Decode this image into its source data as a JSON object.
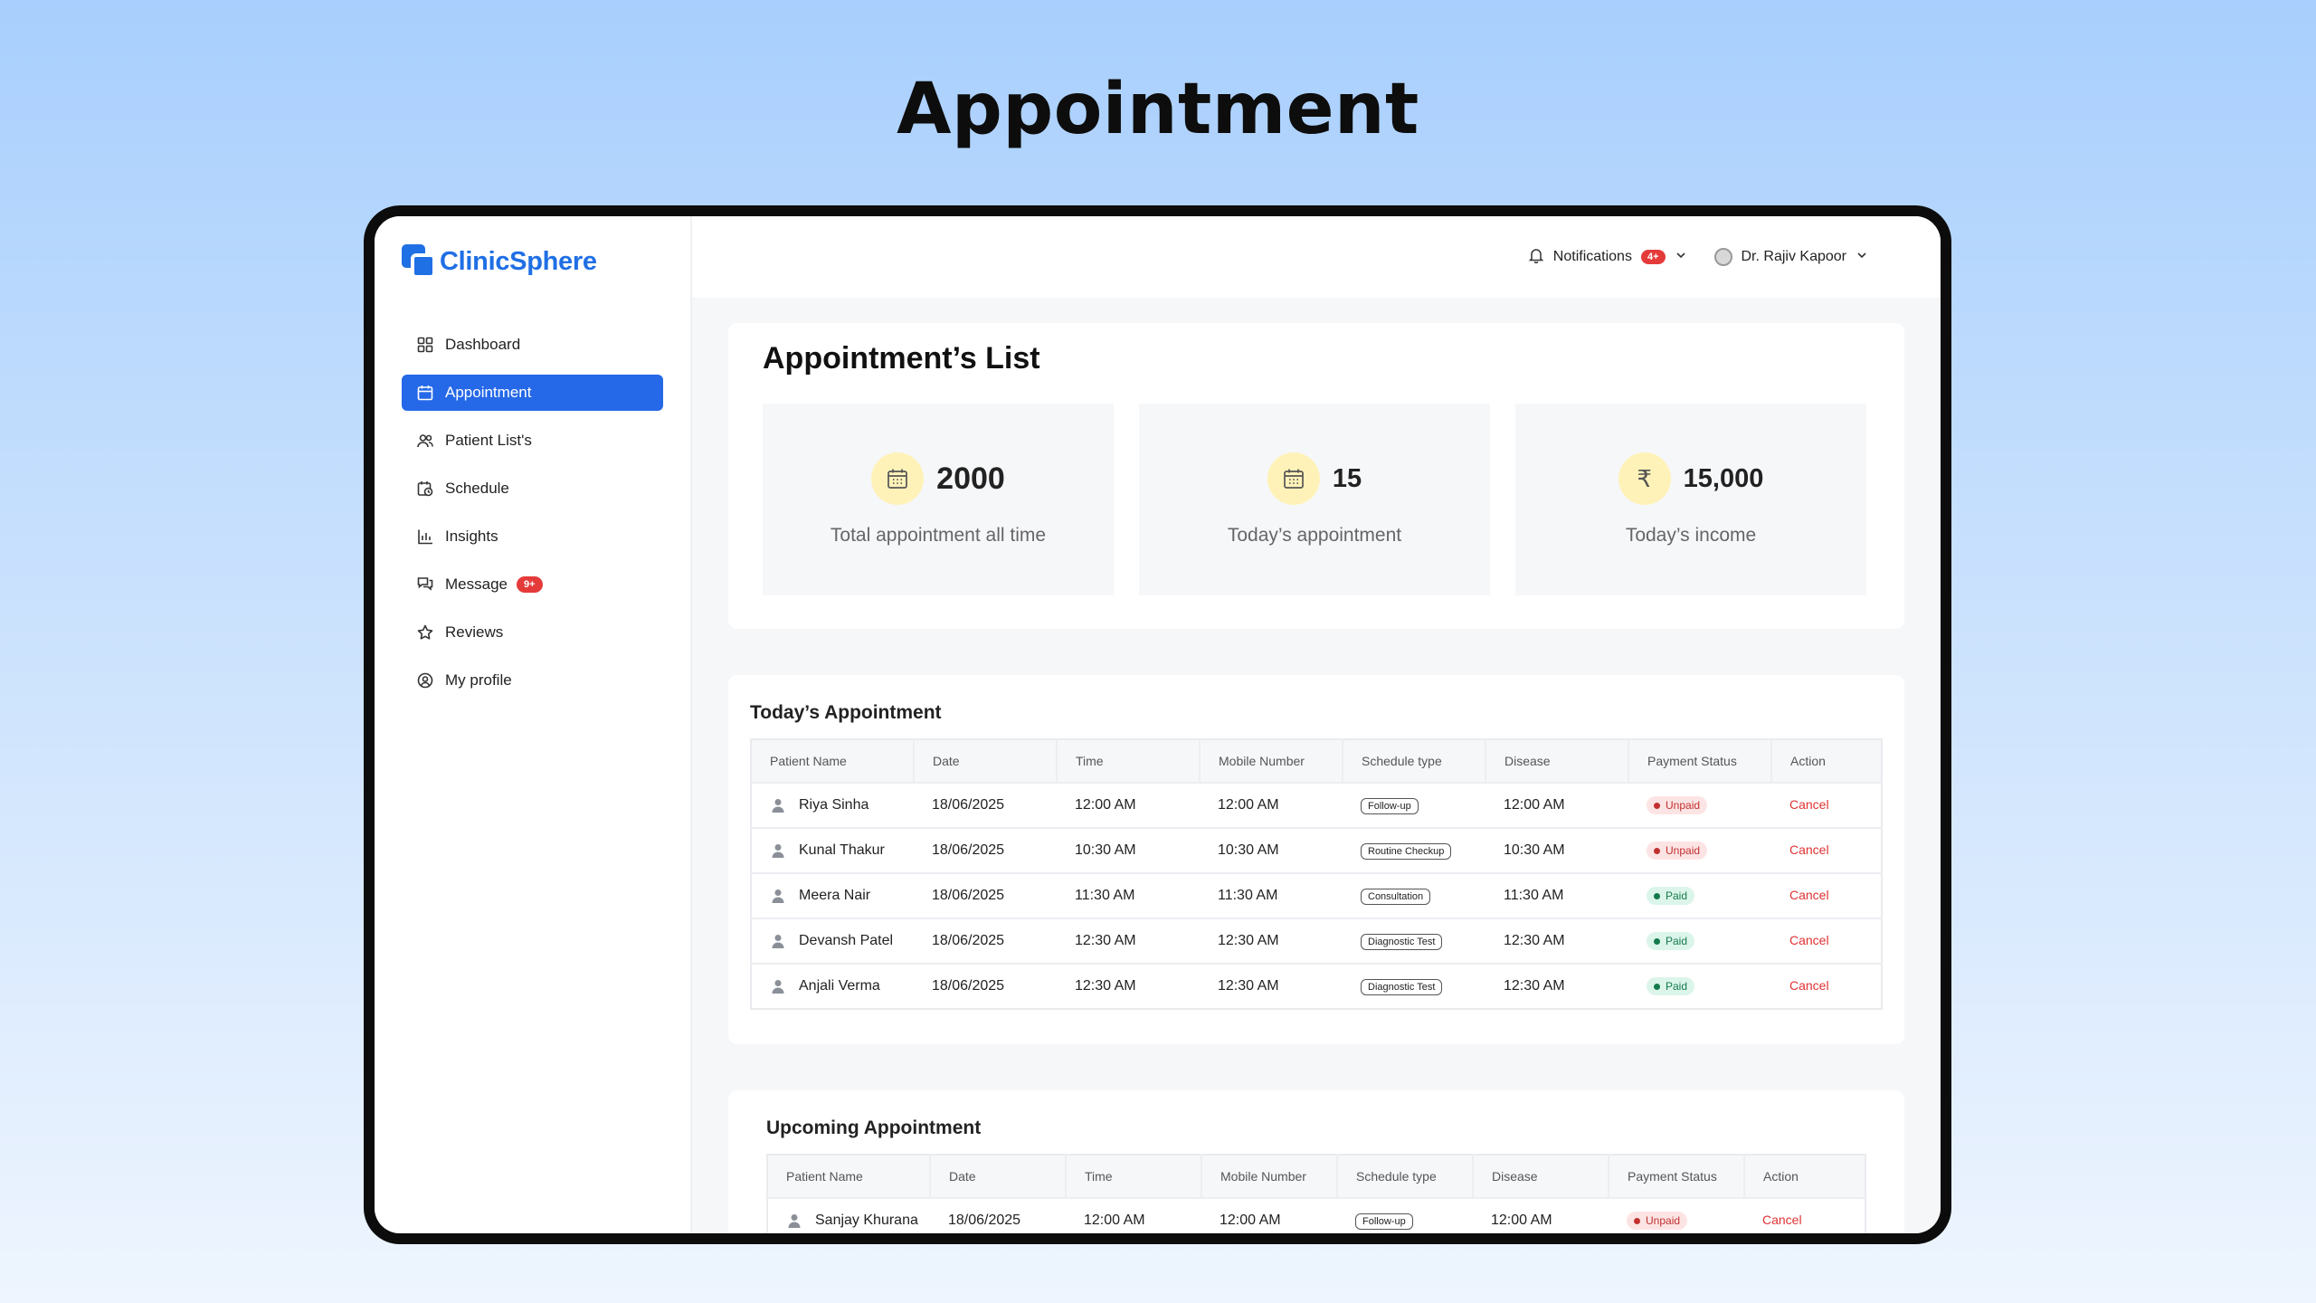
{
  "hero_title": "Appointment",
  "brand": {
    "name": "ClinicSphere",
    "color": "#1f6fe5"
  },
  "sidebar": {
    "items": [
      {
        "label": "Dashboard",
        "icon": "grid-icon",
        "active": false
      },
      {
        "label": "Appointment",
        "icon": "calendar-icon",
        "active": true
      },
      {
        "label": "Patient List's",
        "icon": "users-icon",
        "active": false
      },
      {
        "label": "Schedule",
        "icon": "calendar-clock-icon",
        "active": false
      },
      {
        "label": "Insights",
        "icon": "bar-chart-icon",
        "active": false
      },
      {
        "label": "Message",
        "icon": "chat-icon",
        "active": false,
        "badge": "9+"
      },
      {
        "label": "Reviews",
        "icon": "star-icon",
        "active": false
      },
      {
        "label": "My profile",
        "icon": "user-circle-icon",
        "active": false
      }
    ]
  },
  "topbar": {
    "notifications_label": "Notifications",
    "notifications_badge": "4+",
    "user_name": "Dr. Rajiv Kapoor"
  },
  "list_title": "Appointment’s List",
  "stats": [
    {
      "value": "2000",
      "label": "Total appointment all time",
      "icon": "calendar-icon"
    },
    {
      "value": "15",
      "label": "Today’s appointment",
      "icon": "calendar-icon"
    },
    {
      "value": "15,000",
      "label": "Today’s income",
      "icon": "rupee-icon"
    }
  ],
  "today": {
    "title": "Today’s Appointment",
    "columns": [
      "Patient Name",
      "Date",
      "Time",
      "Mobile Number",
      "Schedule type",
      "Disease",
      "Payment Status",
      "Action"
    ],
    "rows": [
      {
        "name": "Riya Sinha",
        "date": "18/06/2025",
        "time": "12:00 AM",
        "mobile": "12:00 AM",
        "type": "Follow-up",
        "disease": "12:00 AM",
        "payment": "Unpaid",
        "action": "Cancel"
      },
      {
        "name": "Kunal Thakur",
        "date": "18/06/2025",
        "time": "10:30 AM",
        "mobile": "10:30 AM",
        "type": "Routine Checkup",
        "disease": "10:30 AM",
        "payment": "Unpaid",
        "action": "Cancel"
      },
      {
        "name": "Meera Nair",
        "date": "18/06/2025",
        "time": "11:30 AM",
        "mobile": "11:30 AM",
        "type": "Consultation",
        "disease": "11:30 AM",
        "payment": "Paid",
        "action": "Cancel"
      },
      {
        "name": "Devansh Patel",
        "date": "18/06/2025",
        "time": "12:30 AM",
        "mobile": "12:30 AM",
        "type": "Diagnostic Test",
        "disease": "12:30 AM",
        "payment": "Paid",
        "action": "Cancel"
      },
      {
        "name": "Anjali Verma",
        "date": "18/06/2025",
        "time": "12:30 AM",
        "mobile": "12:30 AM",
        "type": "Diagnostic Test",
        "disease": "12:30 AM",
        "payment": "Paid",
        "action": "Cancel"
      }
    ]
  },
  "upcoming": {
    "title": "Upcoming Appointment",
    "columns": [
      "Patient Name",
      "Date",
      "Time",
      "Mobile Number",
      "Schedule type",
      "Disease",
      "Payment Status",
      "Action"
    ],
    "rows": [
      {
        "name": "Sanjay Khurana",
        "date": "18/06/2025",
        "time": "12:00 AM",
        "mobile": "12:00 AM",
        "type": "Follow-up",
        "disease": "12:00 AM",
        "payment": "Unpaid",
        "action": "Cancel"
      }
    ]
  }
}
